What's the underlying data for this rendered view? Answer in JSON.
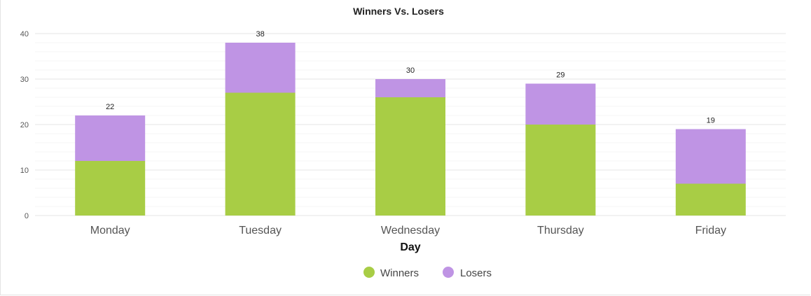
{
  "chart_data": {
    "type": "bar",
    "stacked": true,
    "title": "Winners Vs. Losers",
    "xlabel": "Day",
    "ylabel": "",
    "ylim": [
      0,
      40
    ],
    "yticks": [
      0,
      10,
      20,
      30,
      40
    ],
    "grid": true,
    "legend_position": "bottom-center",
    "categories": [
      "Monday",
      "Tuesday",
      "Wednesday",
      "Thursday",
      "Friday"
    ],
    "series": [
      {
        "name": "Winners",
        "color": "#a8cd45",
        "values": [
          12,
          27,
          26,
          20,
          7
        ]
      },
      {
        "name": "Losers",
        "color": "#bf94e4",
        "values": [
          10,
          11,
          4,
          9,
          12
        ]
      }
    ],
    "totals": [
      22,
      38,
      30,
      29,
      19
    ]
  }
}
